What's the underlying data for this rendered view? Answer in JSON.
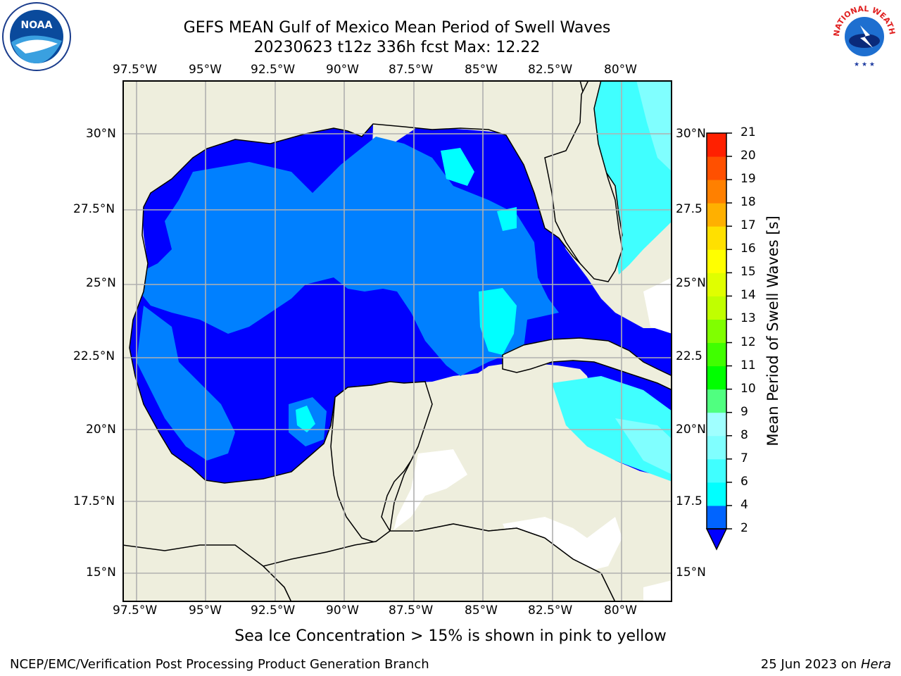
{
  "header": {
    "title": "GEFS MEAN Gulf of Mexico Mean Period of Swell Waves",
    "subtitle": "20230623 t12z 336h fcst   Max: 12.22"
  },
  "logos": {
    "left_text": "NOAA",
    "right_text": "NATIONAL WEATHER SERVICE"
  },
  "map": {
    "lon_labels": [
      "97.5°W",
      "95°W",
      "92.5°W",
      "90°W",
      "87.5°W",
      "85°W",
      "82.5°W",
      "80°W"
    ],
    "lat_labels_left": [
      "30°N",
      "27.5°N",
      "25°N",
      "22.5°N",
      "20°N",
      "17.5°N",
      "15°N"
    ],
    "lat_labels_right": [
      "30°N",
      "27.5",
      "25°N",
      "22.5",
      "20°N",
      "17.5",
      "15°N"
    ],
    "colors": {
      "land": "#eeeedd",
      "deep_blue": "#0000ff",
      "mid_blue": "#0080ff",
      "cyan": "#00ffff",
      "light_cyan": "#80ffff",
      "green": "#00dd00",
      "light_green": "#80ff00",
      "grid": "#b0b0b0"
    }
  },
  "colorbar": {
    "label": "Mean Period of Swell Waves [s]",
    "ticks": [
      "2",
      "4",
      "6",
      "7",
      "8",
      "9",
      "10",
      "11",
      "12",
      "13",
      "14",
      "15",
      "16",
      "17",
      "18",
      "19",
      "20",
      "21"
    ],
    "colors": [
      "#0064ff",
      "#00ffff",
      "#40ffff",
      "#80ffff",
      "#a0ffff",
      "#50ff80",
      "#00ff00",
      "#40ff00",
      "#80ff00",
      "#c0ff00",
      "#e0ff00",
      "#ffff00",
      "#ffe000",
      "#ffb000",
      "#ff8000",
      "#ff5000",
      "#ff2000"
    ]
  },
  "note": "Sea Ice Concentration > 15% is shown in pink to yellow",
  "footer": {
    "left": "NCEP/EMC/Verification Post Processing Product Generation Branch",
    "right_date": "25 Jun 2023 on ",
    "right_host": "Hera"
  }
}
